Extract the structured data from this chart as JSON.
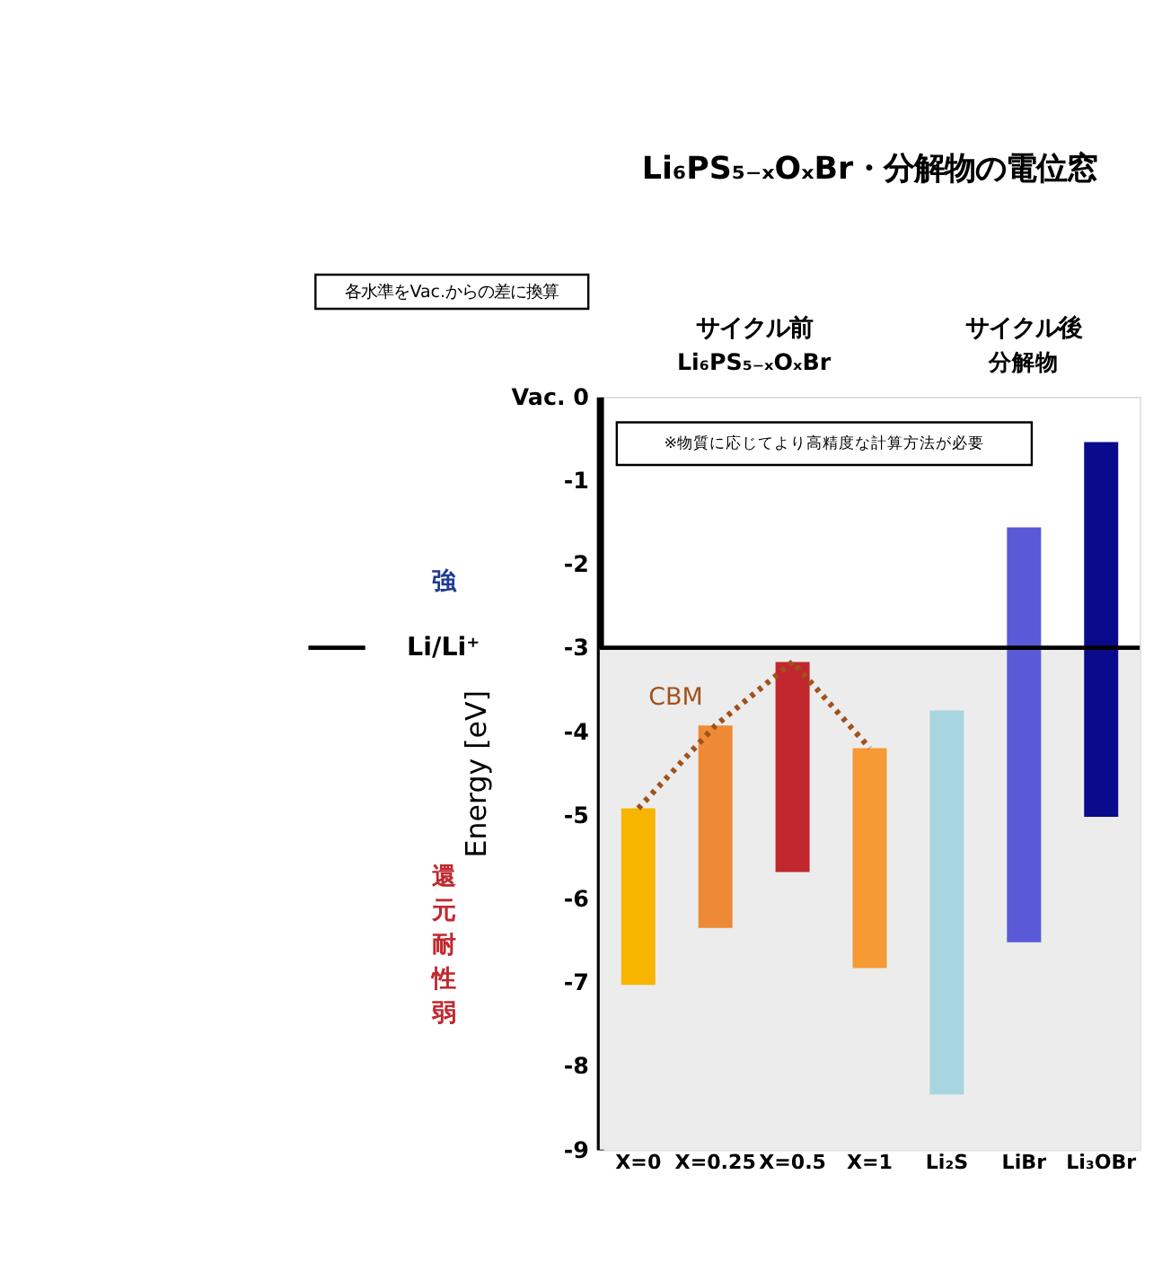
{
  "chart_data": {
    "type": "bar",
    "title": "Li₆PS₅₋ₓOₓBr・分解物の電位窓",
    "ylabel": "Energy [eV]",
    "categories": [
      "X=0",
      "X=0.25",
      "X=0.5",
      "X=1",
      "Li₂S",
      "LiBr",
      "Li₃OBr"
    ],
    "series": [
      {
        "values": [
          2.11,
          2.42,
          2.51,
          2.63,
          4.59,
          4.96,
          4.48
        ],
        "base": [
          -7.03,
          -6.35,
          -5.68,
          -6.83,
          -8.34,
          -6.52,
          -5.02
        ],
        "colors": [
          "#f7b500",
          "#ee8a35",
          "#c0282e",
          "#f59a35",
          "#a8d6e0",
          "#5a5ad8",
          "#0a0a8c"
        ]
      },
      {
        "type": "line",
        "name": "CBM",
        "color": "#a0521c",
        "x": [
          "X=0",
          "X=0.25",
          "X=0.5",
          "X=1"
        ],
        "values": [
          -4.92,
          -3.93,
          -3.17,
          -4.2
        ],
        "line_style": "dotted",
        "marker": "none"
      }
    ],
    "ylim": [
      -9,
      0
    ],
    "yticks": [
      {
        "value": 0,
        "label": "Vac. 0"
      },
      -1,
      -2,
      -3,
      -4,
      -5,
      -6,
      -7,
      -8,
      -9
    ],
    "ref_lines": [
      {
        "axis": "y",
        "value": -3,
        "label": "Li/Li⁺"
      }
    ],
    "bands": [
      {
        "axis": "y",
        "from": -9,
        "to": -3,
        "color": "#ececec"
      }
    ],
    "annotations": [
      "※物質に応じてより高精度な計算方法が必要",
      "サイクル前",
      "Li₆PS₅₋ₓOₓBr",
      "サイクル後",
      "分解物",
      "各水準をVac.からの差に換算",
      "強",
      "還元耐性弱"
    ],
    "grid": false
  }
}
